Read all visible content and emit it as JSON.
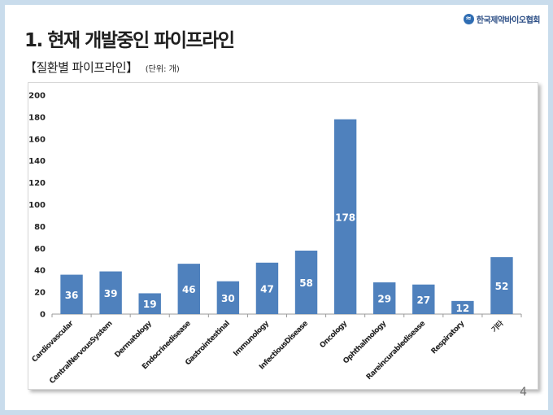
{
  "header": {
    "title": "1. 현재 개발중인 파이프라인",
    "subtitle": "【질환별 파이프라인】",
    "unit": "(단위: 개)",
    "logo_text": "한국제약바이오협회",
    "logo_icon": "kpbma-logo-icon"
  },
  "page_number": "4",
  "colors": {
    "bar": "#4f81bd",
    "background": "#c9dcec"
  },
  "chart_data": {
    "type": "bar",
    "title": "",
    "xlabel": "",
    "ylabel": "",
    "categories": [
      "Cardiovascular",
      "CentralNervousSystem",
      "Dermatology",
      "Endocrinedisease",
      "Gastrointestinal",
      "Immunology",
      "InfectiousDisease",
      "Oncology",
      "Ophthalmology",
      "Rareincurabledisease",
      "Respiratory",
      "기타"
    ],
    "values": [
      36,
      39,
      19,
      46,
      30,
      47,
      58,
      178,
      29,
      27,
      12,
      52
    ],
    "ylim": [
      0,
      200
    ],
    "yticks": [
      0,
      20,
      40,
      60,
      80,
      100,
      120,
      140,
      160,
      180,
      200
    ],
    "grid": false,
    "legend": "none",
    "data_labels": true
  }
}
